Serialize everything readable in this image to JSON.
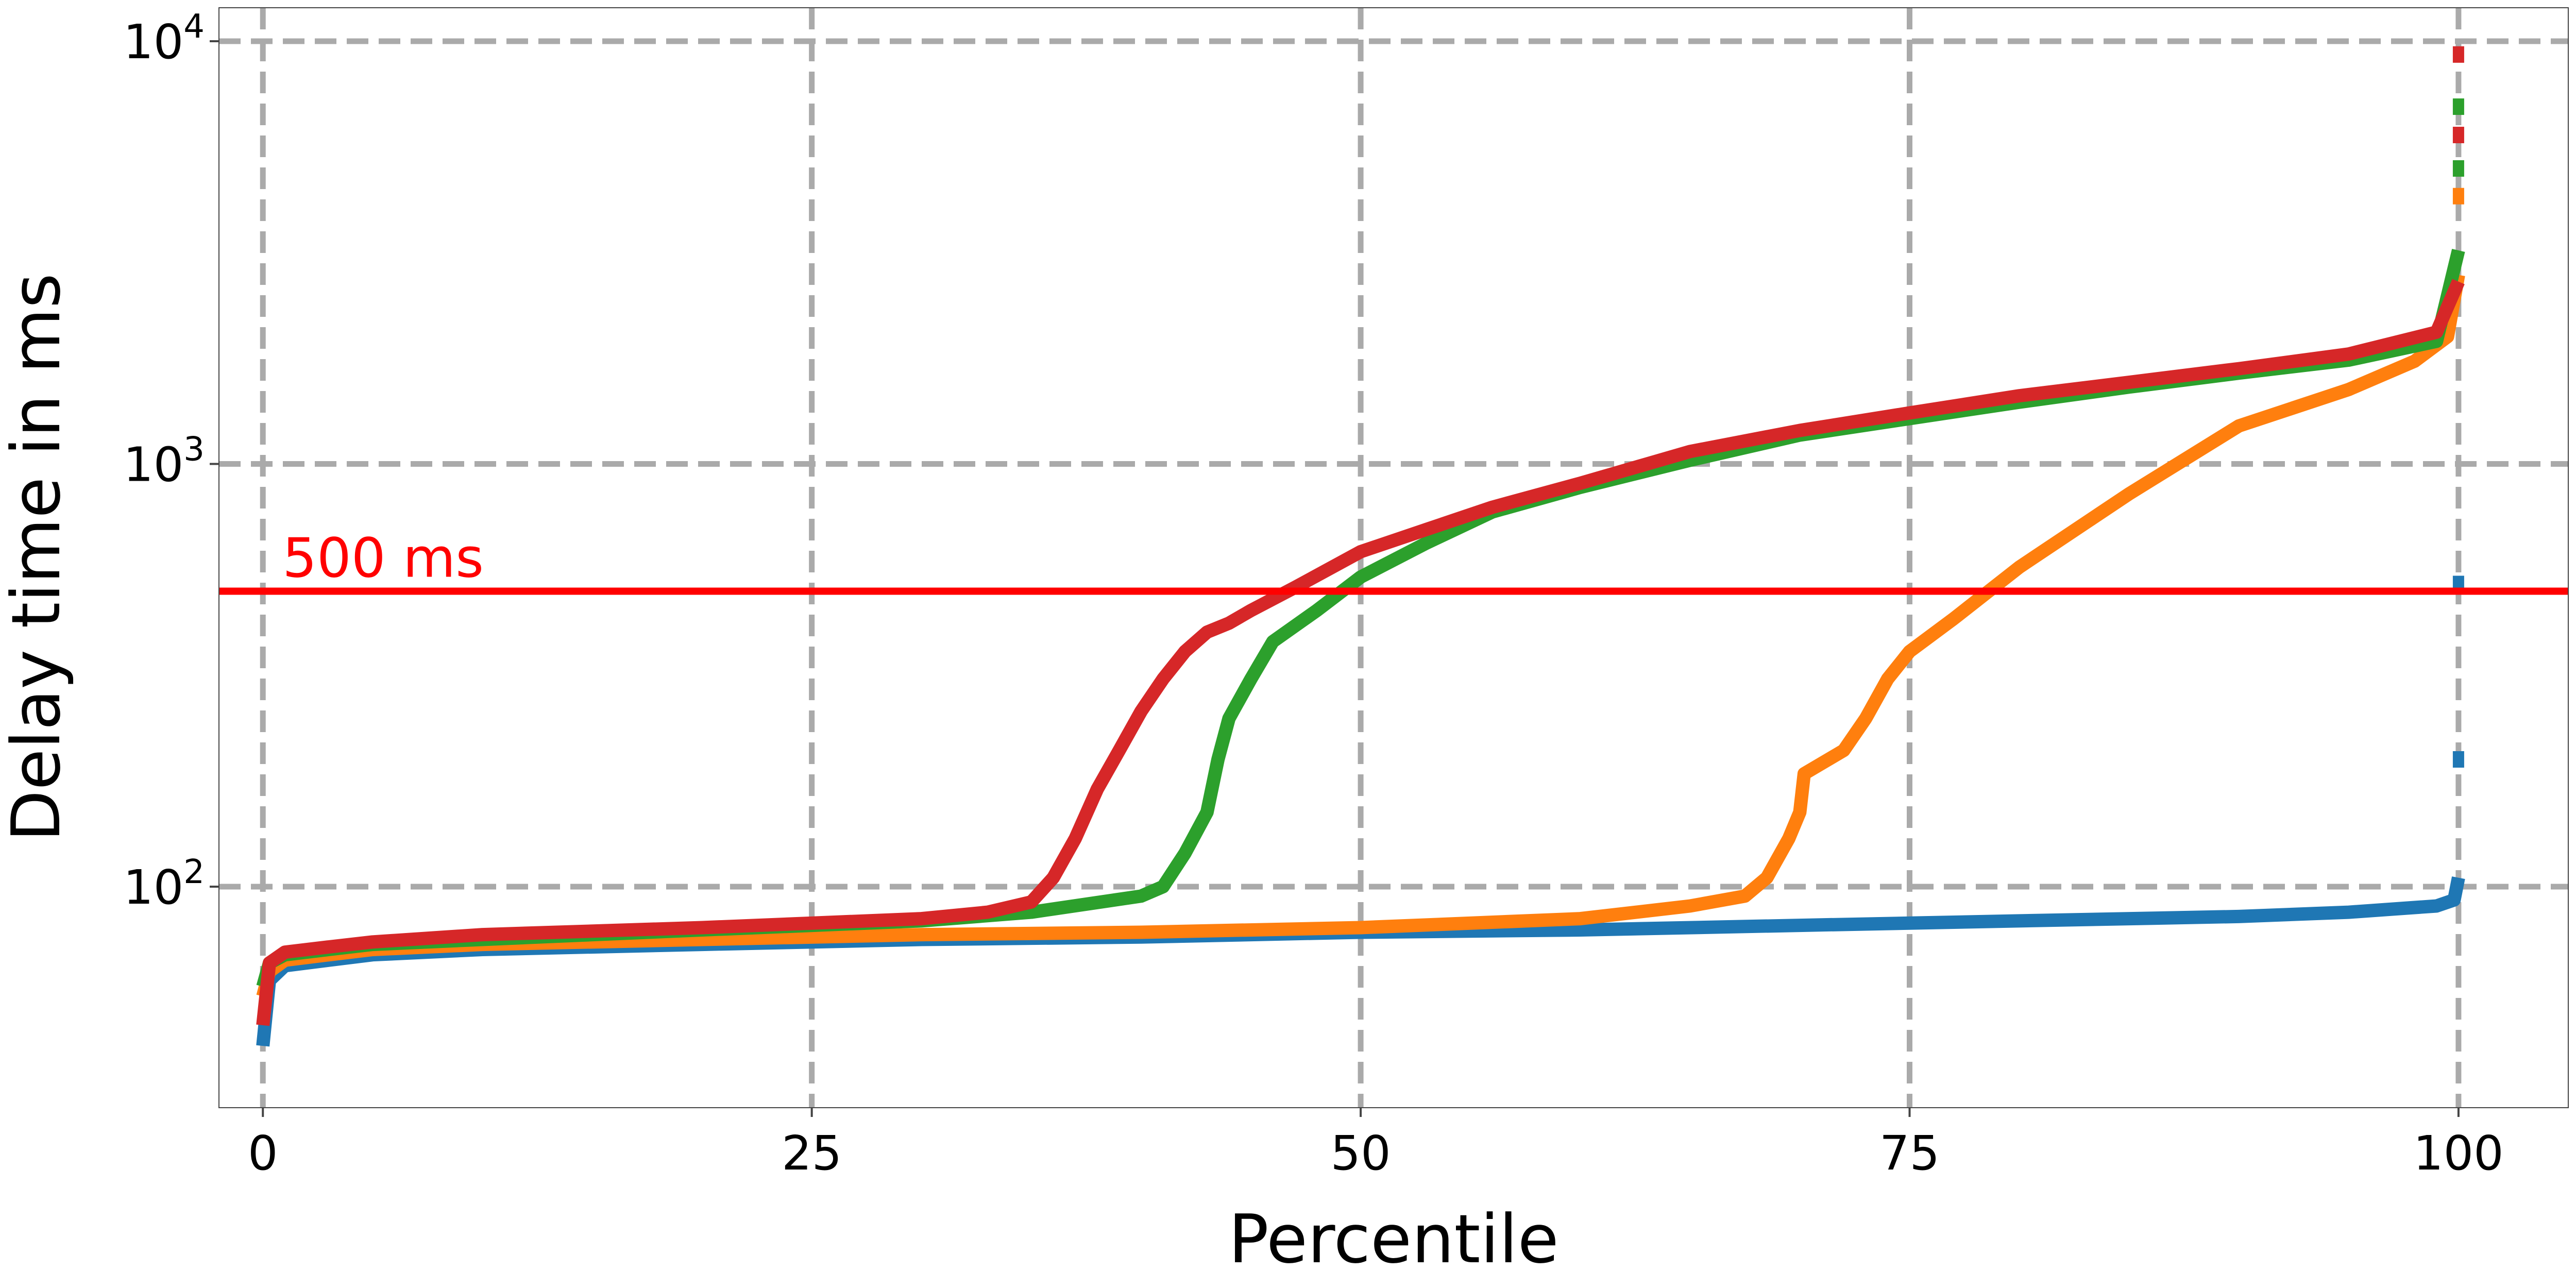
{
  "chart_data": {
    "type": "line",
    "title": "",
    "xlabel": "Percentile",
    "ylabel": "Delay time in ms",
    "xlim": [
      -2,
      105
    ],
    "ylim": [
      30,
      12000
    ],
    "yscale": "log",
    "grid": true,
    "x_ticks": [
      {
        "value": 0,
        "label": "0"
      },
      {
        "value": 25,
        "label": "25"
      },
      {
        "value": 50,
        "label": "50"
      },
      {
        "value": 75,
        "label": "75"
      },
      {
        "value": 100,
        "label": "100"
      }
    ],
    "y_ticks": [
      {
        "value": 100,
        "base": "10",
        "exp": "2"
      },
      {
        "value": 1000,
        "base": "10",
        "exp": "3"
      },
      {
        "value": 10000,
        "base": "10",
        "exp": "4"
      }
    ],
    "reference_line": {
      "value": 500,
      "label": "500 ms",
      "color": "#ff0000"
    },
    "series": [
      {
        "color": "#1f77b4",
        "x": [
          0,
          0.3,
          1,
          3,
          5,
          10,
          20,
          30,
          40,
          50,
          60,
          70,
          80,
          90,
          95,
          99,
          99.8,
          100
        ],
        "y": [
          42,
          60,
          65,
          67,
          69,
          71,
          73,
          75,
          76,
          78,
          79,
          81,
          83,
          85,
          87,
          90,
          93,
          105
        ],
        "outliers": [
          {
            "x": 100,
            "y": 200
          },
          {
            "x": 100,
            "y": 520
          }
        ]
      },
      {
        "color": "#ff7f0e",
        "x": [
          0,
          0.3,
          1,
          3,
          5,
          10,
          20,
          30,
          40,
          50,
          60,
          65,
          67.5,
          68.5,
          69.5,
          70,
          70.2,
          72,
          73,
          74,
          75,
          77,
          80,
          85,
          90,
          95,
          98,
          99.5,
          100
        ],
        "y": [
          55,
          63,
          67,
          69,
          71,
          73,
          75,
          77,
          78,
          80,
          84,
          90,
          95,
          105,
          130,
          150,
          185,
          210,
          250,
          310,
          360,
          430,
          570,
          850,
          1230,
          1500,
          1750,
          2000,
          2800
        ],
        "outliers": [
          {
            "x": 100,
            "y": 4300
          }
        ]
      },
      {
        "color": "#2ca02c",
        "x": [
          0,
          0.3,
          1,
          3,
          5,
          10,
          20,
          30,
          35,
          40,
          41,
          42,
          43,
          43.5,
          44,
          45,
          46,
          48,
          50,
          53,
          56,
          60,
          65,
          70,
          75,
          80,
          85,
          90,
          95,
          99,
          100
        ],
        "y": [
          58,
          66,
          69,
          71,
          73,
          75,
          79,
          83,
          87,
          95,
          100,
          120,
          150,
          200,
          250,
          310,
          380,
          450,
          540,
          650,
          770,
          880,
          1020,
          1170,
          1280,
          1400,
          1520,
          1640,
          1760,
          1950,
          3200
        ],
        "outliers": [
          {
            "x": 100,
            "y": 5000
          },
          {
            "x": 100,
            "y": 7000
          }
        ]
      },
      {
        "color": "#d62728",
        "x": [
          0,
          0.3,
          1,
          3,
          5,
          10,
          20,
          30,
          33,
          35,
          36,
          37,
          38,
          39,
          40,
          41,
          42,
          43,
          44,
          45,
          47,
          50,
          53,
          56,
          60,
          65,
          70,
          75,
          80,
          85,
          90,
          95,
          99,
          100
        ],
        "y": [
          47,
          66,
          70,
          72,
          74,
          77,
          80,
          84,
          87,
          92,
          105,
          130,
          170,
          210,
          260,
          310,
          360,
          400,
          420,
          450,
          510,
          620,
          700,
          790,
          900,
          1070,
          1200,
          1320,
          1450,
          1560,
          1680,
          1820,
          2050,
          2700
        ],
        "outliers": [
          {
            "x": 100,
            "y": 6000
          },
          {
            "x": 100,
            "y": 9300
          }
        ]
      }
    ]
  }
}
